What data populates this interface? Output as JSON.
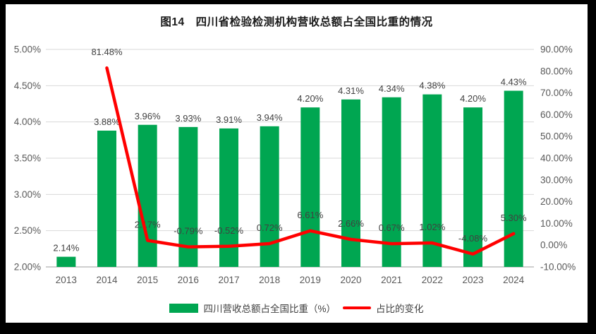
{
  "window": {
    "frame_color": "#000000",
    "background": "#FFFFFF"
  },
  "colors": {
    "bar_green": "#00A651",
    "line_red": "#FF0000",
    "gridline": "#D9D9D9",
    "axis_line": "#BFBFBF",
    "tick_text": "#595959",
    "data_label_text": "#404040",
    "title_text": "#1A1A1A"
  },
  "chart_data": {
    "type": "combo",
    "title": "图14　四川省检验检测机构营收总额占全国比重的情况",
    "categories": [
      "2013",
      "2014",
      "2015",
      "2016",
      "2017",
      "2018",
      "2019",
      "2020",
      "2021",
      "2022",
      "2023",
      "2024"
    ],
    "series": [
      {
        "name": "四川营收总额占全国比重（%）",
        "type": "bar",
        "axis": "left",
        "color": "#00A651",
        "values": [
          2.14,
          3.88,
          3.96,
          3.93,
          3.91,
          3.94,
          4.2,
          4.31,
          4.34,
          4.38,
          4.2,
          4.43
        ],
        "labels": [
          "2.14%",
          "3.88%",
          "3.96%",
          "3.93%",
          "3.91%",
          "3.94%",
          "4.20%",
          "4.31%",
          "4.34%",
          "4.38%",
          "4.20%",
          "4.43%"
        ]
      },
      {
        "name": "占比的变化",
        "type": "line",
        "axis": "right",
        "color": "#FF0000",
        "values": [
          null,
          81.48,
          2.17,
          -0.79,
          -0.52,
          0.72,
          6.61,
          2.66,
          0.67,
          1.02,
          -4.08,
          5.3
        ],
        "labels": [
          null,
          "81.48%",
          "2.17%",
          "-0.79%",
          "-0.52%",
          "0.72%",
          "6.61%",
          "2.66%",
          "0.67%",
          "1.02%",
          "-4.08%",
          "5.30%"
        ]
      }
    ],
    "left_axis": {
      "min": 2.0,
      "max": 5.0,
      "step": 0.5,
      "tick_labels": [
        "2.00%",
        "2.50%",
        "3.00%",
        "3.50%",
        "4.00%",
        "4.50%",
        "5.00%"
      ]
    },
    "right_axis": {
      "min": -10.0,
      "max": 90.0,
      "step": 10.0,
      "tick_labels": [
        "-10.00%",
        "0.00%",
        "10.00%",
        "20.00%",
        "30.00%",
        "40.00%",
        "50.00%",
        "60.00%",
        "70.00%",
        "80.00%",
        "90.00%"
      ]
    },
    "grid": true,
    "legend_position": "bottom"
  }
}
